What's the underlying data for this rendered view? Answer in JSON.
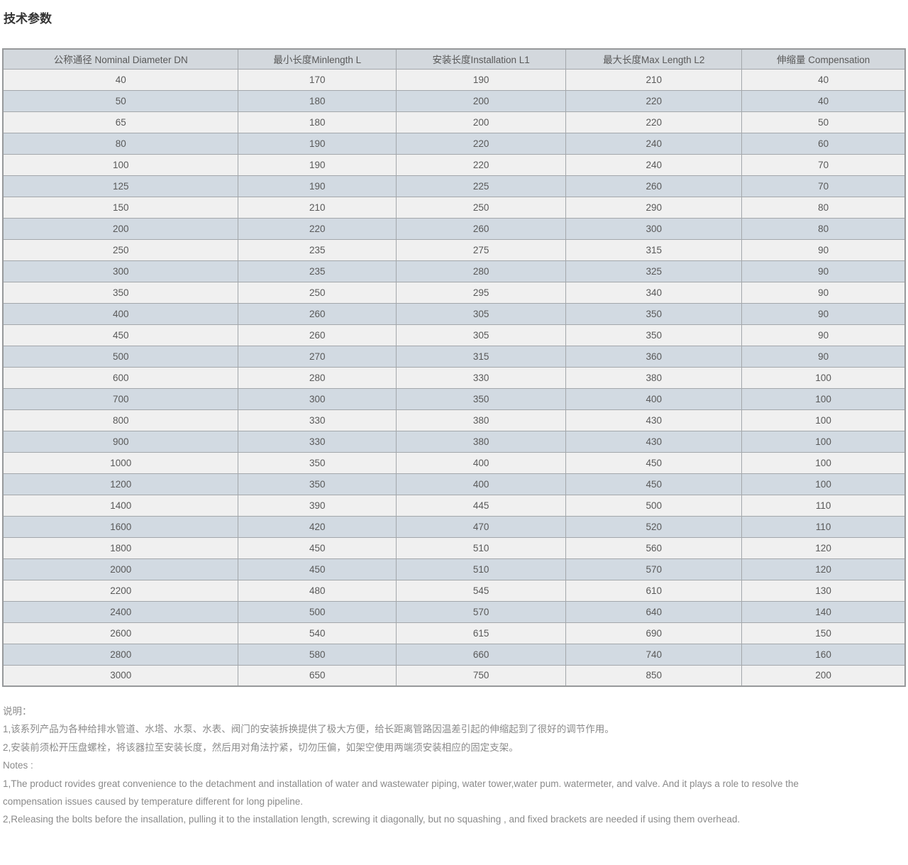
{
  "page": {
    "title": "技术参数"
  },
  "table": {
    "headers": [
      "公称通径 Nominal Diameter DN",
      "最小长度Minlength L",
      "安装长度Installation L1",
      "最大长度Max Length L2",
      "伸缩量 Compensation"
    ],
    "col_widths_percent": [
      26.1,
      17.5,
      18.8,
      19.5,
      18.1
    ],
    "rows": [
      [
        40,
        170,
        190,
        210,
        40
      ],
      [
        50,
        180,
        200,
        220,
        40
      ],
      [
        65,
        180,
        200,
        220,
        50
      ],
      [
        80,
        190,
        220,
        240,
        60
      ],
      [
        100,
        190,
        220,
        240,
        70
      ],
      [
        125,
        190,
        225,
        260,
        70
      ],
      [
        150,
        210,
        250,
        290,
        80
      ],
      [
        200,
        220,
        260,
        300,
        80
      ],
      [
        250,
        235,
        275,
        315,
        90
      ],
      [
        300,
        235,
        280,
        325,
        90
      ],
      [
        350,
        250,
        295,
        340,
        90
      ],
      [
        400,
        260,
        305,
        350,
        90
      ],
      [
        450,
        260,
        305,
        350,
        90
      ],
      [
        500,
        270,
        315,
        360,
        90
      ],
      [
        600,
        280,
        330,
        380,
        100
      ],
      [
        700,
        300,
        350,
        400,
        100
      ],
      [
        800,
        330,
        380,
        430,
        100
      ],
      [
        900,
        330,
        380,
        430,
        100
      ],
      [
        1000,
        350,
        400,
        450,
        100
      ],
      [
        1200,
        350,
        400,
        450,
        100
      ],
      [
        1400,
        390,
        445,
        500,
        110
      ],
      [
        1600,
        420,
        470,
        520,
        110
      ],
      [
        1800,
        450,
        510,
        560,
        120
      ],
      [
        2000,
        450,
        510,
        570,
        120
      ],
      [
        2200,
        480,
        545,
        610,
        130
      ],
      [
        2400,
        500,
        570,
        640,
        140
      ],
      [
        2600,
        540,
        615,
        690,
        150
      ],
      [
        2800,
        580,
        660,
        740,
        160
      ],
      [
        3000,
        650,
        750,
        850,
        200
      ]
    ]
  },
  "notes": {
    "cn_label": "说明：",
    "cn_lines": [
      "1,该系列产品为各种给排水管道、水塔、水泵、水表、阀门的安装拆换提供了极大方便，给长距离管路因温差引起的伸缩起到了很好的调节作用。",
      "2,安装前须松开压盘螺栓，将该器拉至安装长度，然后用对角法拧紧，切勿压偏，如架空使用两端须安装相应的固定支架。"
    ],
    "en_label": "Notes :",
    "en_lines": [
      "1,The product rovides great convenience to the detachment and installation of water and wastewater piping, water tower,water pum. watermeter, and valve. And it plays a role to resolve the",
      "compensation issues caused by temperature different for long pipeline.",
      "2,Releasing the bolts before the insallation, pulling it to the installation length, screwing it diagonally, but no squashing , and fixed brackets are needed if using them overhead."
    ]
  },
  "colors": {
    "title_text": "#333333",
    "cell_text": "#595959",
    "note_text": "#8a8a8a",
    "header_bg": "#d3d8dd",
    "row_odd_bg": "#f0f0f0",
    "row_even_bg": "#d2dae2",
    "border_inner": "#a3a7ab",
    "border_outer": "#97999b"
  }
}
